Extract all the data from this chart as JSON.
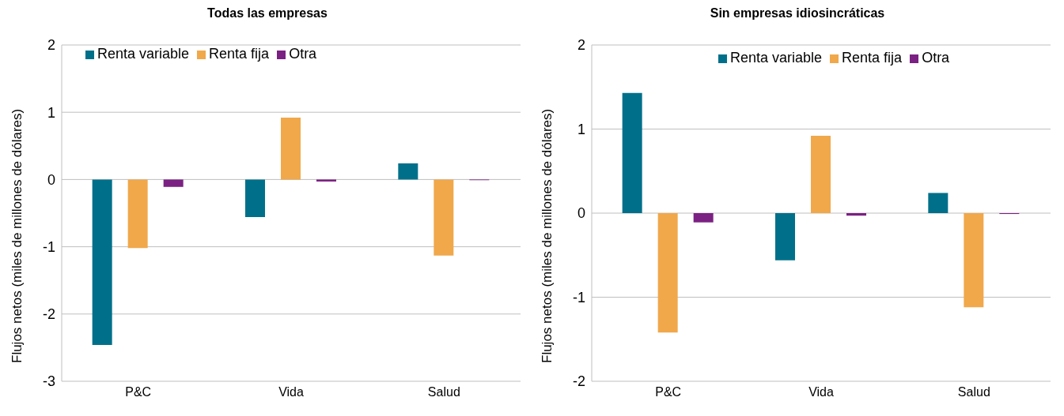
{
  "chart_data": [
    {
      "type": "bar",
      "title": "Todas las empresas",
      "ylabel": "Flujos netos (miles de millones de dólares)",
      "categories": [
        "P&C",
        "Vida",
        "Salud"
      ],
      "series": [
        {
          "name": "Renta variable",
          "color": "#00708a",
          "values": [
            -2.46,
            -0.56,
            0.24
          ]
        },
        {
          "name": "Renta fija",
          "color": "#f0a84b",
          "values": [
            -1.02,
            0.92,
            -1.13
          ]
        },
        {
          "name": "Otra",
          "color": "#7b2183",
          "values": [
            -0.11,
            -0.03,
            -0.01
          ]
        }
      ],
      "ylim": [
        -3,
        2
      ],
      "yticks": [
        -3,
        -2,
        -1,
        0,
        1,
        2
      ],
      "grid": "y",
      "legend": "top left"
    },
    {
      "type": "bar",
      "title": "Sin empresas idiosincráticas",
      "ylabel": "Flujos netos (miles de millones de dólares)",
      "categories": [
        "P&C",
        "Vida",
        "Salud"
      ],
      "series": [
        {
          "name": "Renta variable",
          "color": "#00708a",
          "values": [
            1.43,
            -0.56,
            0.24
          ]
        },
        {
          "name": "Renta fija",
          "color": "#f0a84b",
          "values": [
            -1.42,
            0.92,
            -1.12
          ]
        },
        {
          "name": "Otra",
          "color": "#7b2183",
          "values": [
            -0.11,
            -0.03,
            -0.01
          ]
        }
      ],
      "ylim": [
        -2,
        2
      ],
      "yticks": [
        -2,
        -1,
        0,
        1,
        2
      ],
      "grid": "y",
      "legend": "top right"
    }
  ]
}
